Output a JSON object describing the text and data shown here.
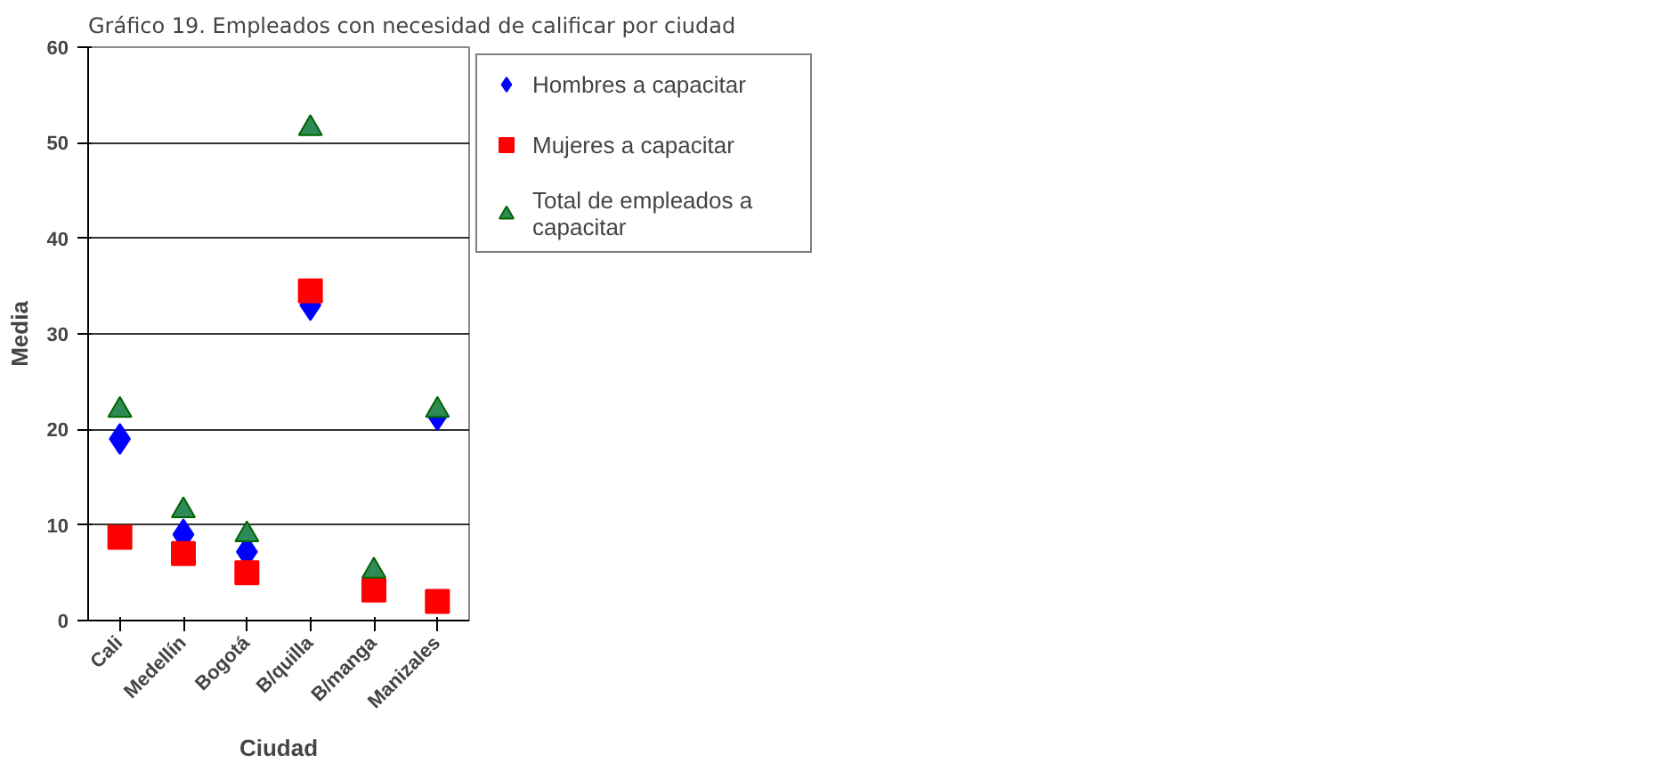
{
  "chart_data": {
    "type": "scatter",
    "title": "Gráfico 19. Empleados con necesidad de calificar por ciudad",
    "xlabel": "Ciudad",
    "ylabel": "Media",
    "categories": [
      "Cali",
      "Medellín",
      "Bogotá",
      "B/quilla",
      "B/manga",
      "Manizales"
    ],
    "ylim": [
      0,
      60
    ],
    "yticks": [
      0,
      10,
      20,
      30,
      40,
      50,
      60
    ],
    "grid": "y",
    "legend": "right",
    "series": [
      {
        "name": "Hombres a capacitar",
        "color": "#0000ff",
        "marker": "diamond",
        "values": [
          19,
          9,
          7.2,
          33,
          null,
          21.5
        ]
      },
      {
        "name": "Mujeres a capacitar",
        "color": "#ff0000",
        "marker": "square",
        "values": [
          8.7,
          7,
          5,
          34.5,
          3.2,
          2
        ]
      },
      {
        "name": "Total de empleados a capacitar",
        "color": "#2e8b57",
        "marker": "triangle",
        "values": [
          22,
          11.5,
          9,
          51.5,
          5.2,
          22
        ]
      }
    ]
  }
}
